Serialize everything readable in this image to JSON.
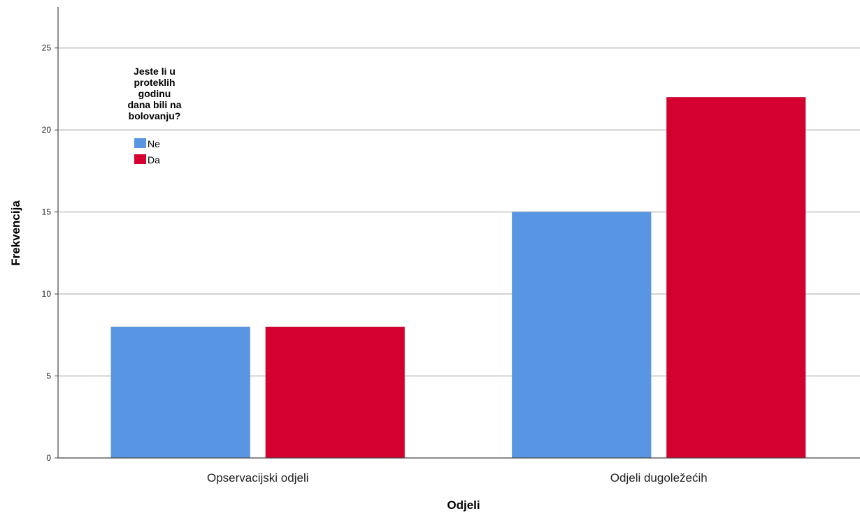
{
  "chart_data": {
    "type": "bar",
    "categories": [
      "Opservacijski odjeli",
      "Odjeli dugoležećih"
    ],
    "series": [
      {
        "name": "Ne",
        "values": [
          8,
          15
        ],
        "color": "#5896E3"
      },
      {
        "name": "Da",
        "values": [
          8,
          22
        ],
        "color": "#D40030"
      }
    ],
    "title": "",
    "xlabel": "Odjeli",
    "ylabel": "Frekvencija",
    "ylim": [
      0,
      27.5
    ],
    "yticks": [
      0,
      5,
      10,
      15,
      20,
      25
    ],
    "grid": true,
    "legend": {
      "title_lines": [
        "Jeste li u",
        "proteklih",
        "godinu",
        "dana bili na",
        "bolovanju?"
      ],
      "placement": "top-left"
    }
  }
}
